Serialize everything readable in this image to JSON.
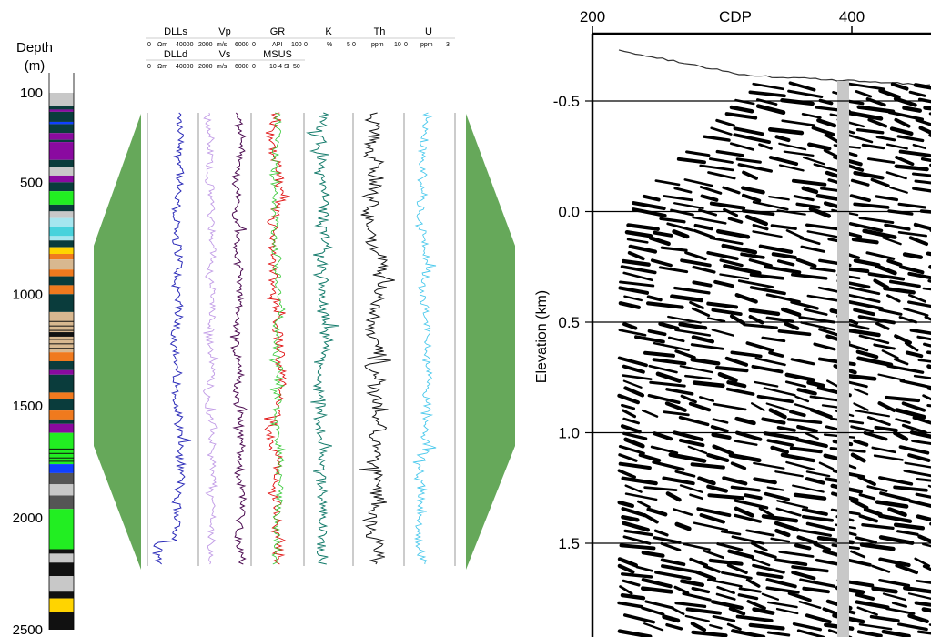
{
  "chart_data": [
    {
      "type": "strip-log",
      "ylabel": "Depth\n(m)",
      "ylabel_lines": [
        "Depth",
        "(m)"
      ],
      "yticks": [
        100,
        500,
        1000,
        1500,
        2000,
        2500
      ],
      "ylim": [
        100,
        2500
      ],
      "lithology_colors": {
        "gray": "#c8c8c8",
        "dark_teal": "#0a3c3c",
        "purple": "#8a0aa0",
        "green": "#22ee22",
        "light_cyan": "#a6e6ef",
        "cyan": "#48d2dc",
        "yellow": "#ffd400",
        "orange": "#f07a1e",
        "tan": "#d8b890",
        "blue": "#1040ff",
        "dark_gray": "#555555",
        "black": "#111111"
      }
    },
    {
      "type": "line",
      "tracks": [
        {
          "name": "DLLs",
          "color": "#e03030",
          "unit": "Ωm",
          "range": [
            0,
            40000
          ]
        },
        {
          "name": "Vp",
          "color": "#c090e0",
          "unit": "m/s",
          "range": [
            2000,
            6000
          ]
        },
        {
          "name": "GR",
          "color": "#e00000",
          "unit": "API",
          "range": [
            0,
            100
          ]
        },
        {
          "name": "K",
          "color": "#0a7a6a",
          "unit": "%",
          "range": [
            0,
            5
          ]
        },
        {
          "name": "Th",
          "color": "#111111",
          "unit": "ppm",
          "range": [
            0,
            10
          ]
        },
        {
          "name": "U",
          "color": "#40c8e8",
          "unit": "ppm",
          "range": [
            0,
            3
          ]
        }
      ],
      "tracks2": [
        {
          "name": "DLLd",
          "color": "#2020c0",
          "unit": "Ωm",
          "range": [
            0,
            40000
          ]
        },
        {
          "name": "Vs",
          "color": "#500060",
          "unit": "m/s",
          "range": [
            2000,
            6000
          ]
        },
        {
          "name": "MSUS",
          "color": "#20b020",
          "unit": "10⁻⁴ SI",
          "range": [
            0,
            50
          ]
        }
      ],
      "header_top": {
        "names": [
          "DLLs",
          "Vp",
          "GR",
          "K",
          "Th",
          "U"
        ],
        "scales": [
          "0",
          "Ωm",
          "40000",
          "2000",
          "m/s",
          "6000",
          "0",
          "API",
          "100",
          "0",
          "%",
          "5",
          "0",
          "ppm",
          "10",
          "0",
          "ppm",
          "3"
        ]
      },
      "header_bottom": {
        "names": [
          "DLLd",
          "Vs",
          "MSUS"
        ],
        "scales": [
          "0",
          "Ωm",
          "40000",
          "2000",
          "m/s",
          "6000",
          "0",
          "10-4 SI",
          "50"
        ]
      },
      "curve_colors": {
        "DLLd": "#2a2ab8",
        "Vp": "#c09ae6",
        "Vs": "#4b0a50",
        "GR": "#e01010",
        "MSUS": "#32c832",
        "K": "#127a6a",
        "Th": "#111111",
        "U": "#48c8ec"
      },
      "panel_fill": "#66a85a"
    },
    {
      "type": "seismic-section",
      "xlabel": "CDP",
      "ylabel": "Elevation (km)",
      "xticks": [
        200,
        400
      ],
      "yticks": [
        -0.5,
        0.0,
        0.5,
        1.0,
        1.5
      ],
      "ytick_labels": [
        "-0.5",
        "0.0",
        "0.5",
        "1.0",
        "1.5"
      ],
      "ylim": [
        -0.75,
        1.9
      ],
      "well_marker_cdp": 400,
      "well_marker_color": "#c8c8c8"
    }
  ]
}
